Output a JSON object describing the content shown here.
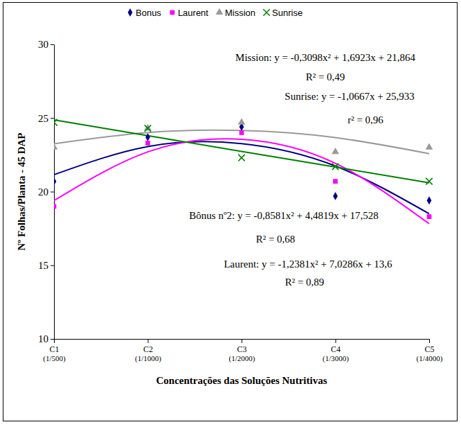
{
  "chart_data": {
    "type": "scatter",
    "x_label": "Concentrações das Soluções Nutritivas",
    "y_label": "Nº Folhas/Planta - 45 DAP",
    "categories": [
      "C1",
      "C2",
      "C3",
      "C4",
      "C5"
    ],
    "category_notes": [
      "(1/500)",
      "(1/1000)",
      "(1/2000)",
      "(1/3000)",
      "(1/4000)"
    ],
    "ylim": [
      10,
      30
    ],
    "yticks": [
      10,
      15,
      20,
      25,
      30
    ],
    "legend": "top",
    "grid": false,
    "series": [
      {
        "name": "Bonus",
        "color": "#000080",
        "marker": "diamond",
        "values": [
          20.7,
          23.7,
          24.4,
          19.7,
          19.4
        ],
        "trend": [
          21.15,
          23.06,
          23.26,
          21.74,
          18.5
        ]
      },
      {
        "name": "Laurent",
        "color": "#ff00ff",
        "marker": "square",
        "values": [
          19.0,
          23.3,
          24.0,
          20.7,
          18.3
        ],
        "trend": [
          19.39,
          22.7,
          23.55,
          21.92,
          17.82
        ]
      },
      {
        "name": "Mission",
        "color": "#999999",
        "marker": "triangle",
        "values": [
          23.0,
          24.3,
          24.7,
          22.7,
          23.0
        ],
        "trend": [
          23.25,
          24.01,
          24.15,
          23.67,
          22.58
        ]
      },
      {
        "name": "Sunrise",
        "color": "#008000",
        "marker": "x",
        "values": [
          24.7,
          24.3,
          22.3,
          21.7,
          20.7
        ],
        "trend": [
          24.87,
          23.8,
          22.73,
          21.67,
          20.6
        ]
      }
    ],
    "annotations": [
      {
        "text": "Mission: y = -0,3098x² + 1,6923x + 21,864"
      },
      {
        "text": "R² = 0,49"
      },
      {
        "text": "Sunrise: y = -1,0667x + 25,933"
      },
      {
        "text": "r² = 0,96"
      },
      {
        "text": "Bônus nº2: y = -0,8581x² + 4,4819x + 17,528"
      },
      {
        "text": "R² = 0,68"
      },
      {
        "text": "Laurent: y = -1,2381x² + 7,0286x + 13,6"
      },
      {
        "text": "R² = 0,89"
      }
    ]
  }
}
